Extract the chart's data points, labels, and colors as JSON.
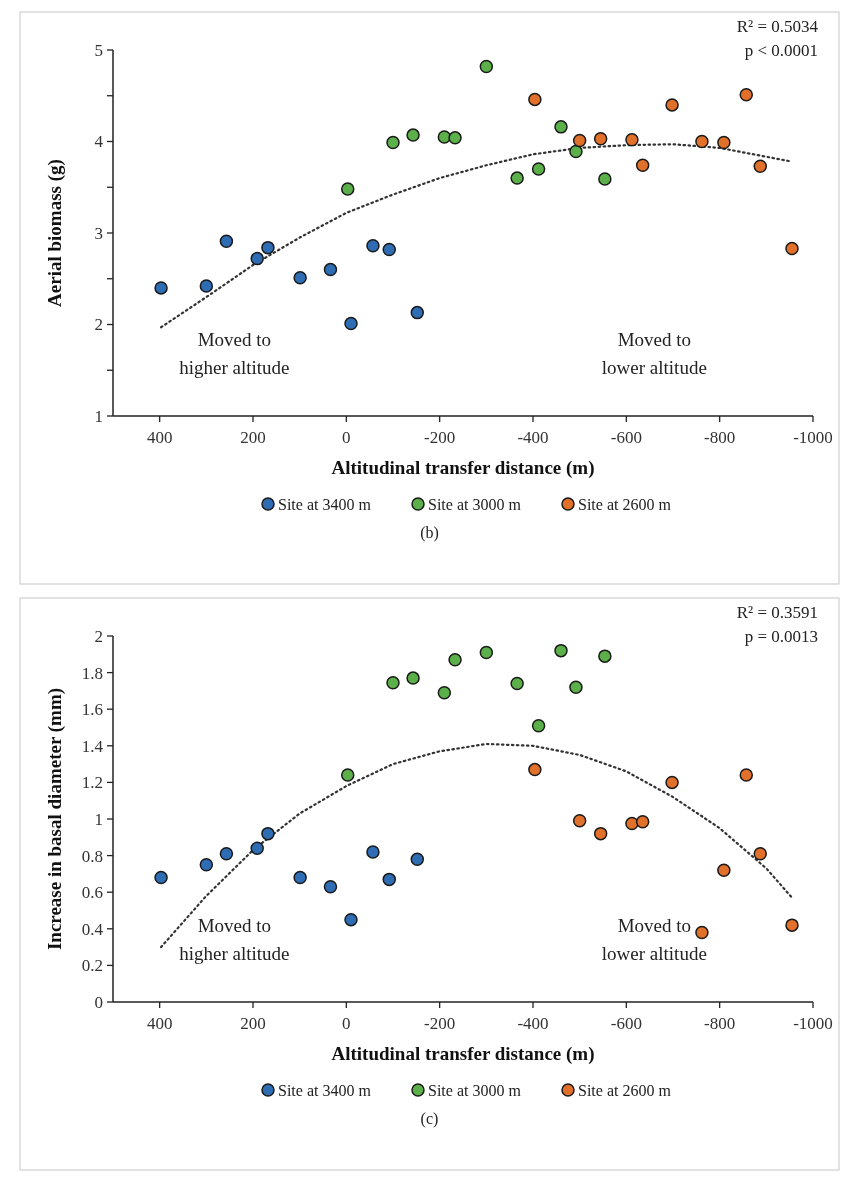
{
  "chart_data": [
    {
      "type": "scatter",
      "xlabel": "Altitudinal transfer distance (m)",
      "ylabel": "Aerial biomass (g)",
      "xlim": [
        500,
        -1000
      ],
      "xticks": [
        400,
        200,
        0,
        -200,
        -400,
        -600,
        -800,
        -1000
      ],
      "ylim": [
        1,
        5
      ],
      "yticks": [
        1,
        {
          "value": 1.5,
          "label": null
        },
        2,
        {
          "value": 2.5,
          "label": null
        },
        3,
        {
          "value": 3.5,
          "label": null
        },
        4,
        {
          "value": 4.5,
          "label": null
        },
        5
      ],
      "legend": "bottom",
      "annotations": [
        "R² = 0.5034",
        "p < 0.0001",
        "Moved to higher altitude",
        "Moved to lower altitude",
        "(b)"
      ],
      "series": [
        {
          "name": "Site at 3400 m",
          "color": "#2e6db4",
          "marker": "circle",
          "x": [
            397,
            300,
            257,
            191,
            168,
            99,
            34,
            -10,
            -57,
            -92,
            -152
          ],
          "values": [
            2.4,
            2.42,
            2.91,
            2.72,
            2.84,
            2.51,
            2.6,
            2.01,
            2.86,
            2.82,
            2.13
          ]
        },
        {
          "name": "Site at 3000 m",
          "color": "#5cb04a",
          "marker": "circle",
          "x": [
            -3,
            -100,
            -143,
            -210,
            -233,
            -300,
            -366,
            -412,
            -460,
            -492,
            -554
          ],
          "values": [
            3.48,
            3.99,
            4.07,
            4.05,
            4.04,
            4.82,
            3.6,
            3.7,
            4.16,
            3.89,
            3.59
          ]
        },
        {
          "name": "Site at 2600 m",
          "color": "#e0702a",
          "marker": "circle",
          "x": [
            -404,
            -500,
            -545,
            -612,
            -635,
            -698,
            -762,
            -809,
            -857,
            -887,
            -955
          ],
          "values": [
            4.46,
            4.01,
            4.03,
            4.02,
            3.74,
            4.4,
            4.0,
            3.99,
            4.51,
            3.73,
            2.83
          ]
        },
        {
          "type": "line",
          "line_style": "dotted",
          "color": "#333333",
          "x": [
            397,
            300,
            200,
            100,
            0,
            -100,
            -200,
            -300,
            -400,
            -500,
            -600,
            -700,
            -800,
            -955
          ],
          "values": [
            1.97,
            2.3,
            2.65,
            2.95,
            3.22,
            3.42,
            3.6,
            3.74,
            3.86,
            3.93,
            3.96,
            3.97,
            3.93,
            3.78
          ]
        }
      ]
    },
    {
      "type": "scatter",
      "xlabel": "Altitudinal transfer distance (m)",
      "ylabel": "Increase in basal diameter (mm)",
      "xlim": [
        500,
        -1000
      ],
      "xticks": [
        400,
        200,
        0,
        -200,
        -400,
        -600,
        -800,
        -1000
      ],
      "ylim": [
        0,
        2
      ],
      "yticks": [
        0,
        0.2,
        0.4,
        0.6,
        0.8,
        1,
        1.2,
        1.4,
        1.6,
        1.8,
        2
      ],
      "legend": "bottom",
      "annotations": [
        "R² = 0.3591",
        "p = 0.0013",
        "Moved to higher altitude",
        "Moved to lower altitude",
        "(c)"
      ],
      "series": [
        {
          "name": "Site at 3400 m",
          "color": "#2e6db4",
          "marker": "circle",
          "x": [
            397,
            300,
            257,
            191,
            168,
            99,
            34,
            -10,
            -57,
            -92,
            -152
          ],
          "values": [
            0.68,
            0.75,
            0.81,
            0.84,
            0.92,
            0.68,
            0.63,
            0.45,
            0.82,
            0.67,
            0.78
          ]
        },
        {
          "name": "Site at 3000 m",
          "color": "#5cb04a",
          "marker": "circle",
          "x": [
            -3,
            -100,
            -143,
            -210,
            -233,
            -300,
            -366,
            -412,
            -460,
            -492,
            -554
          ],
          "values": [
            1.24,
            1.745,
            1.77,
            1.69,
            1.87,
            1.91,
            1.74,
            1.51,
            1.92,
            1.72,
            1.89
          ]
        },
        {
          "name": "Site at 2600 m",
          "color": "#e0702a",
          "marker": "circle",
          "x": [
            -404,
            -500,
            -545,
            -612,
            -635,
            -698,
            -762,
            -809,
            -857,
            -887,
            -955
          ],
          "values": [
            1.27,
            0.99,
            0.92,
            0.975,
            0.985,
            1.2,
            0.38,
            0.72,
            1.24,
            0.81,
            0.42
          ]
        },
        {
          "type": "line",
          "line_style": "dotted",
          "color": "#333333",
          "x": [
            397,
            300,
            200,
            100,
            0,
            -100,
            -200,
            -300,
            -400,
            -500,
            -600,
            -700,
            -800,
            -900,
            -955
          ],
          "values": [
            0.3,
            0.58,
            0.83,
            1.03,
            1.18,
            1.3,
            1.37,
            1.41,
            1.4,
            1.35,
            1.26,
            1.12,
            0.95,
            0.73,
            0.57
          ]
        }
      ]
    }
  ]
}
